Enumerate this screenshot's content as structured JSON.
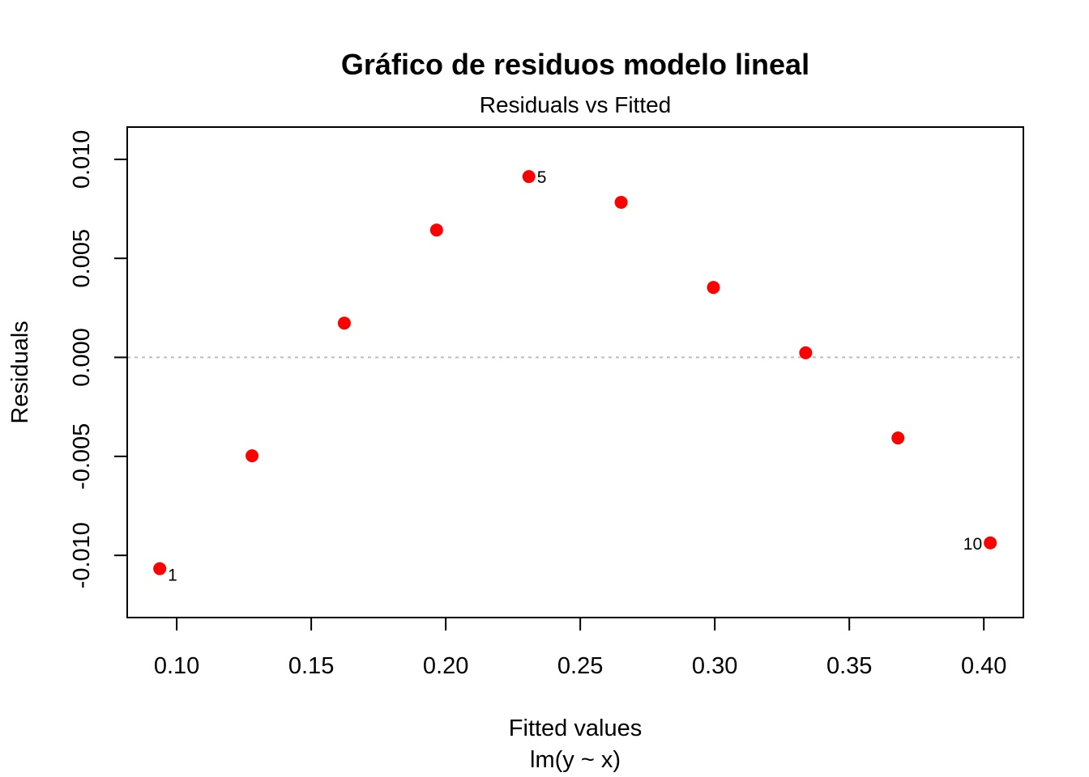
{
  "chart_data": {
    "type": "scatter",
    "title": "Gráfico de residuos modelo lineal",
    "subtitle": "Residuals vs Fitted",
    "xlabel": "Fitted values",
    "xlabel2": "lm(y ~ x)",
    "ylabel": "Residuals",
    "xlim": [
      0.0816,
      0.4147
    ],
    "ylim": [
      -0.01314,
      0.01163
    ],
    "xticks": [
      "0.10",
      "0.15",
      "0.20",
      "0.25",
      "0.30",
      "0.35",
      "0.40"
    ],
    "yticks": [
      "-0.010",
      "-0.005",
      "0.000",
      "0.005",
      "0.010"
    ],
    "reference_line": 0,
    "point_color": "#ff0000",
    "grid": false,
    "points": [
      {
        "x": 0.0937,
        "y": -0.01067,
        "label": "1"
      },
      {
        "x": 0.128,
        "y": -0.00497,
        "label": ""
      },
      {
        "x": 0.1623,
        "y": 0.00173,
        "label": ""
      },
      {
        "x": 0.1966,
        "y": 0.00643,
        "label": ""
      },
      {
        "x": 0.2309,
        "y": 0.00913,
        "label": "5"
      },
      {
        "x": 0.2652,
        "y": 0.00783,
        "label": ""
      },
      {
        "x": 0.2995,
        "y": 0.00353,
        "label": ""
      },
      {
        "x": 0.3338,
        "y": 0.00023,
        "label": ""
      },
      {
        "x": 0.3681,
        "y": -0.00407,
        "label": ""
      },
      {
        "x": 0.4024,
        "y": -0.00937,
        "label": "10"
      }
    ]
  }
}
